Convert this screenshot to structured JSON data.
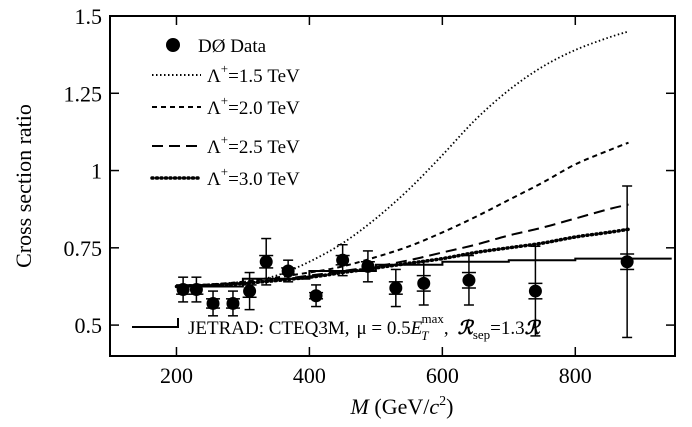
{
  "chart_data": {
    "type": "scatter",
    "xlabel": "M (GeV/c²)",
    "ylabel": "Cross section ratio",
    "xlim": [
      100,
      950
    ],
    "ylim": [
      0.4,
      1.5
    ],
    "xticks": [
      200,
      400,
      600,
      800
    ],
    "yticks": [
      0.5,
      0.75,
      1,
      1.25,
      1.5
    ],
    "ytick_labels": [
      "0.5",
      "0.75",
      "1",
      "1.25",
      "1.5"
    ],
    "data_series": {
      "name": "DØ Data",
      "points": [
        {
          "x": 210,
          "y": 0.615,
          "sys_lo": 0.575,
          "sys_hi": 0.655,
          "stat_lo": 0.6,
          "stat_hi": 0.63
        },
        {
          "x": 230,
          "y": 0.615,
          "sys_lo": 0.575,
          "sys_hi": 0.655,
          "stat_lo": 0.6,
          "stat_hi": 0.63
        },
        {
          "x": 255,
          "y": 0.57,
          "sys_lo": 0.53,
          "sys_hi": 0.61,
          "stat_lo": 0.555,
          "stat_hi": 0.585
        },
        {
          "x": 285,
          "y": 0.57,
          "sys_lo": 0.53,
          "sys_hi": 0.61,
          "stat_lo": 0.555,
          "stat_hi": 0.585
        },
        {
          "x": 310,
          "y": 0.61,
          "sys_lo": 0.55,
          "sys_hi": 0.67,
          "stat_lo": 0.59,
          "stat_hi": 0.63
        },
        {
          "x": 335,
          "y": 0.705,
          "sys_lo": 0.63,
          "sys_hi": 0.78,
          "stat_lo": 0.685,
          "stat_hi": 0.725
        },
        {
          "x": 368,
          "y": 0.675,
          "sys_lo": 0.64,
          "sys_hi": 0.71,
          "stat_lo": 0.665,
          "stat_hi": 0.685
        },
        {
          "x": 410,
          "y": 0.595,
          "sys_lo": 0.56,
          "sys_hi": 0.63,
          "stat_lo": 0.585,
          "stat_hi": 0.605
        },
        {
          "x": 450,
          "y": 0.71,
          "sys_lo": 0.66,
          "sys_hi": 0.76,
          "stat_lo": 0.695,
          "stat_hi": 0.725
        },
        {
          "x": 488,
          "y": 0.69,
          "sys_lo": 0.64,
          "sys_hi": 0.74,
          "stat_lo": 0.675,
          "stat_hi": 0.705
        },
        {
          "x": 530,
          "y": 0.62,
          "sys_lo": 0.56,
          "sys_hi": 0.68,
          "stat_lo": 0.6,
          "stat_hi": 0.64
        },
        {
          "x": 572,
          "y": 0.635,
          "sys_lo": 0.565,
          "sys_hi": 0.705,
          "stat_lo": 0.61,
          "stat_hi": 0.66
        },
        {
          "x": 640,
          "y": 0.645,
          "sys_lo": 0.565,
          "sys_hi": 0.725,
          "stat_lo": 0.62,
          "stat_hi": 0.67
        },
        {
          "x": 740,
          "y": 0.61,
          "sys_lo": 0.465,
          "sys_hi": 0.755,
          "stat_lo": 0.585,
          "stat_hi": 0.635
        },
        {
          "x": 878,
          "y": 0.705,
          "sys_lo": 0.46,
          "sys_hi": 0.95,
          "stat_lo": 0.68,
          "stat_hi": 0.73
        }
      ]
    },
    "jetrad": {
      "label": "JETRAD: CTEQ3M,",
      "x": [
        200,
        300,
        300,
        400,
        400,
        500,
        500,
        600,
        600,
        700,
        700,
        800,
        800,
        945
      ],
      "y": [
        0.625,
        0.625,
        0.65,
        0.65,
        0.675,
        0.675,
        0.695,
        0.695,
        0.705,
        0.705,
        0.71,
        0.71,
        0.715,
        0.715
      ]
    },
    "curves": [
      {
        "name": "Λ⁺=1.5 TeV",
        "style": "dotted",
        "x": [
          200,
          300,
          350,
          400,
          450,
          500,
          550,
          600,
          650,
          700,
          750,
          800,
          850,
          880
        ],
        "y": [
          0.625,
          0.64,
          0.66,
          0.705,
          0.765,
          0.845,
          0.94,
          1.05,
          1.165,
          1.26,
          1.335,
          1.39,
          1.43,
          1.45
        ]
      },
      {
        "name": "Λ⁺=2.0 TeV",
        "style": "dashed-short",
        "x": [
          200,
          300,
          400,
          450,
          500,
          550,
          600,
          650,
          700,
          750,
          800,
          850,
          880
        ],
        "y": [
          0.625,
          0.64,
          0.67,
          0.69,
          0.72,
          0.755,
          0.8,
          0.85,
          0.905,
          0.96,
          1.02,
          1.065,
          1.09
        ]
      },
      {
        "name": "Λ⁺=2.5 TeV",
        "style": "dashed-long",
        "x": [
          200,
          300,
          400,
          450,
          500,
          550,
          600,
          650,
          700,
          750,
          800,
          850,
          880
        ],
        "y": [
          0.625,
          0.635,
          0.66,
          0.675,
          0.69,
          0.71,
          0.735,
          0.76,
          0.79,
          0.815,
          0.845,
          0.875,
          0.89
        ]
      },
      {
        "name": "Λ⁺=3.0 TeV",
        "style": "dotted-heavy",
        "x": [
          200,
          300,
          400,
          450,
          500,
          550,
          600,
          650,
          700,
          750,
          800,
          850,
          880
        ],
        "y": [
          0.625,
          0.635,
          0.655,
          0.67,
          0.685,
          0.7,
          0.715,
          0.735,
          0.75,
          0.765,
          0.785,
          0.8,
          0.81
        ]
      }
    ],
    "legend": {
      "data_label": "DØ Data",
      "curve_prefix": "Λ",
      "curve_sup": "+",
      "curve_values": [
        "=1.5 TeV",
        "=2.0 TeV",
        "=2.5 TeV",
        "=3.0 TeV"
      ],
      "jetrad_label": "JETRAD: CTEQ3M,",
      "mu_text": "μ = 0.5",
      "et_symbol": "E",
      "et_sub": "T",
      "et_sup": "max",
      "rsep_symbol": "ℛ",
      "rsep_sub": "sep",
      "rsep_value": "=1.3",
      "rsep_tail": "ℛ"
    }
  }
}
